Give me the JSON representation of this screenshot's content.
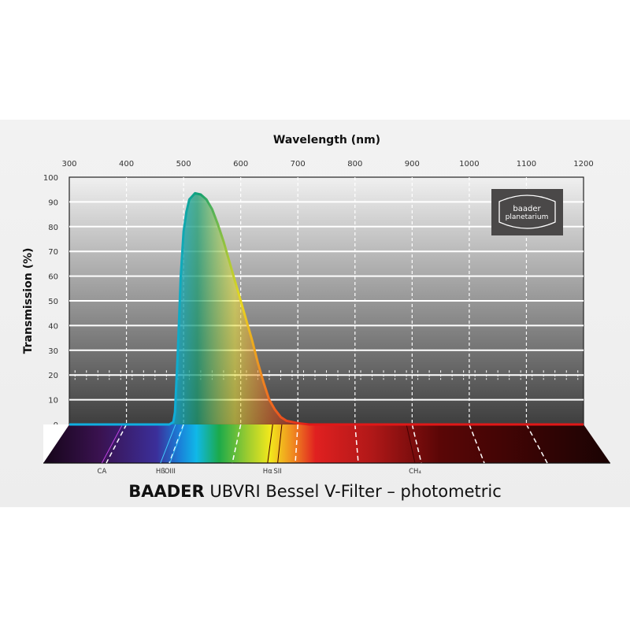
{
  "chart_data": {
    "type": "area",
    "title_brand": "BAADER",
    "title_rest": "UBVRI Bessel V-Filter – photometric",
    "xlabel": "Wavelength (nm)",
    "ylabel": "Transmission (%)",
    "xlim": [
      300,
      1200
    ],
    "ylim": [
      0,
      100
    ],
    "xticks": [
      300,
      400,
      500,
      600,
      700,
      800,
      900,
      1000,
      1100,
      1200
    ],
    "yticks": [
      0,
      10,
      20,
      30,
      40,
      50,
      60,
      70,
      80,
      90,
      100
    ],
    "grid": true,
    "x": [
      300,
      475,
      482,
      485,
      490,
      495,
      500,
      505,
      510,
      520,
      530,
      540,
      550,
      560,
      570,
      580,
      590,
      600,
      610,
      620,
      630,
      640,
      650,
      660,
      670,
      680,
      700,
      720,
      1200
    ],
    "y": [
      0,
      0,
      1,
      5,
      30,
      60,
      78,
      86,
      91,
      93.5,
      93,
      91,
      87,
      81,
      74,
      66,
      58,
      50,
      42,
      34,
      25,
      17,
      10,
      6,
      3,
      1.5,
      0.5,
      0,
      0
    ],
    "spectral_lines": [
      {
        "label": "CA",
        "wavelength": 393
      },
      {
        "label": "Hß",
        "wavelength": 486
      },
      {
        "label": "OIII",
        "wavelength": 501
      },
      {
        "label": "Hα",
        "wavelength": 656
      },
      {
        "label": "SII",
        "wavelength": 672
      },
      {
        "label": "CH₄",
        "wavelength": 890
      }
    ],
    "logo": {
      "line1": "baader",
      "line2": "planetarium"
    },
    "colors": {
      "plot_top": "#f0f0f0",
      "plot_bottom": "#3e3e3e",
      "logo_bg": "#4a4848"
    }
  }
}
